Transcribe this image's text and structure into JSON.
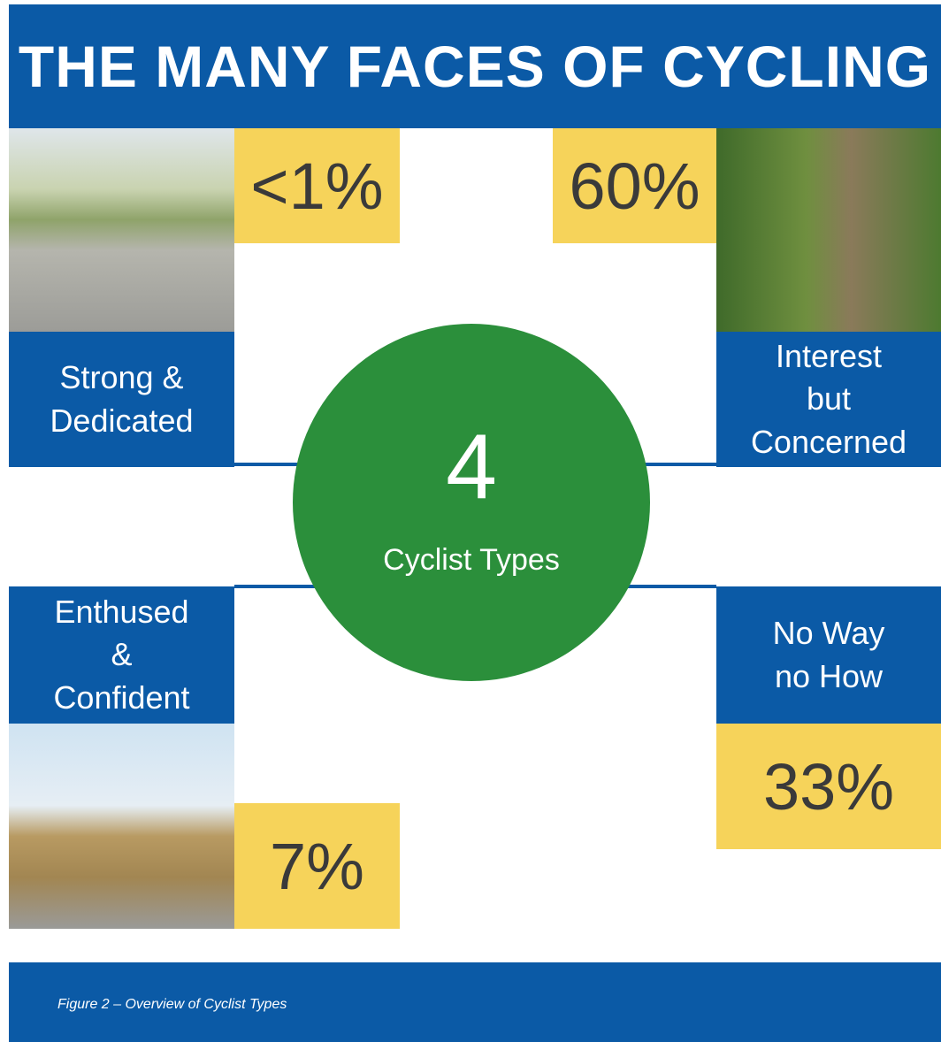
{
  "header": {
    "title": "THE MANY FACES OF CYCLING"
  },
  "center": {
    "number": "4",
    "label": "Cyclist Types"
  },
  "types": [
    {
      "label": "Strong & Dedicated",
      "share": "<1%"
    },
    {
      "label": "Interest but Concerned",
      "share": "60%"
    },
    {
      "label": "Enthused & Confident",
      "share": "7%"
    },
    {
      "label": "No Way no How",
      "share": "33%"
    }
  ],
  "caption": "Figure 2 – Overview of Cyclist Types"
}
